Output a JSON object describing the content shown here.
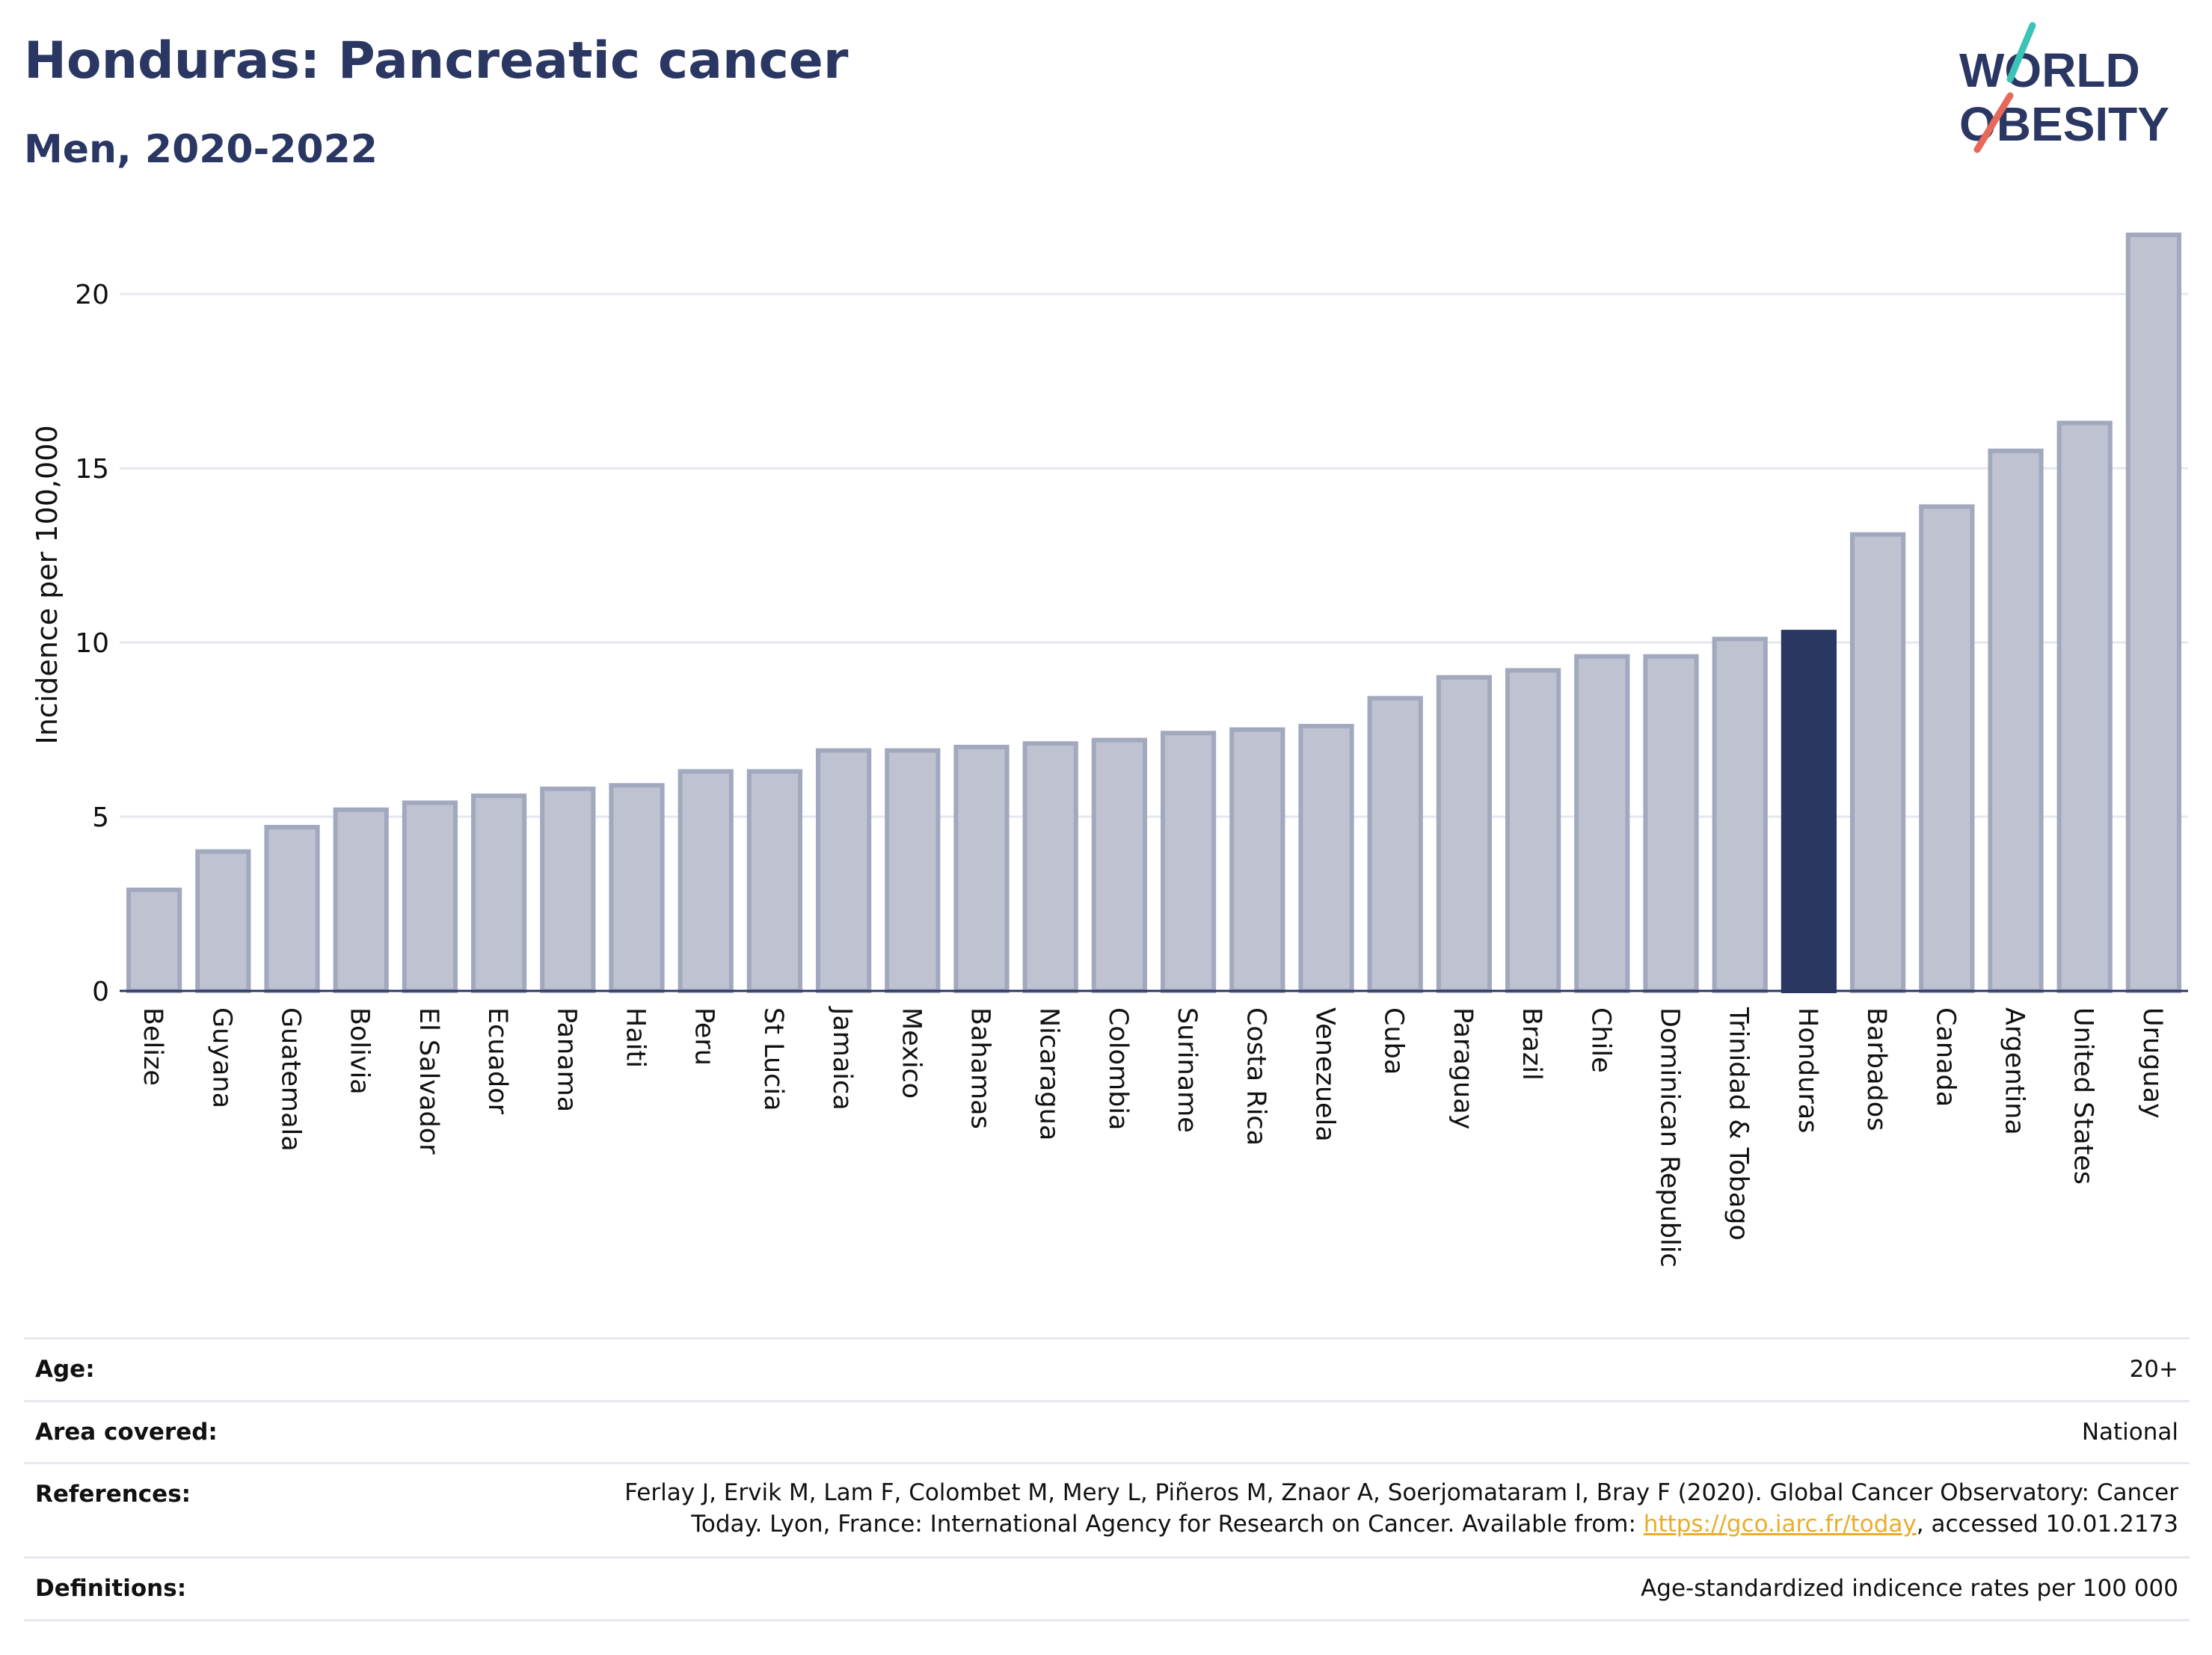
{
  "header": {
    "title": "Honduras: Pancreatic cancer",
    "subtitle": "Men, 2020-2022"
  },
  "logo": {
    "line1": "WORLD",
    "line2": "OBESITY",
    "colors": {
      "text": "#2a3763",
      "slash_top": "#3cc3b7",
      "slash_bottom": "#e8685a"
    }
  },
  "chart_data": {
    "type": "bar",
    "title": "Honduras: Pancreatic cancer",
    "subtitle": "Men, 2020-2022",
    "xlabel": "",
    "ylabel": "Incidence per 100,000",
    "ylim": [
      0,
      22
    ],
    "yticks": [
      0,
      5,
      10,
      15,
      20
    ],
    "grid": true,
    "highlight": "Honduras",
    "colors": {
      "bar": "#bfc3d1",
      "bar_border": "#a2a8be",
      "highlight": "#2a3763",
      "grid": "#e6e8ef"
    },
    "categories": [
      "Belize",
      "Guyana",
      "Guatemala",
      "Bolivia",
      "El Salvador",
      "Ecuador",
      "Panama",
      "Haiti",
      "Peru",
      "St Lucia",
      "Jamaica",
      "Mexico",
      "Bahamas",
      "Nicaragua",
      "Colombia",
      "Suriname",
      "Costa Rica",
      "Venezuela",
      "Cuba",
      "Paraguay",
      "Brazil",
      "Chile",
      "Dominican Republic",
      "Trinidad & Tobago",
      "Honduras",
      "Barbados",
      "Canada",
      "Argentina",
      "United States",
      "Uruguay"
    ],
    "values": [
      2.9,
      4.0,
      4.7,
      5.2,
      5.4,
      5.6,
      5.8,
      5.9,
      6.3,
      6.3,
      6.9,
      6.9,
      7.0,
      7.1,
      7.2,
      7.4,
      7.5,
      7.6,
      8.4,
      9.0,
      9.2,
      9.6,
      9.6,
      10.1,
      10.3,
      13.1,
      13.9,
      15.5,
      16.3,
      21.7
    ]
  },
  "info": {
    "age_label": "Age:",
    "age_value": "20+",
    "area_label": "Area covered:",
    "area_value": "National",
    "references_label": "References:",
    "references_text": "Ferlay J, Ervik M, Lam F, Colombet M, Mery L, Piñeros M, Znaor A, Soerjomataram I, Bray F (2020). Global Cancer Observatory: Cancer Today. Lyon, France: International Agency for Research on Cancer. Available from: ",
    "references_link": "https://gco.iarc.fr/today",
    "references_suffix": ", accessed 10.01.2173",
    "definitions_label": "Definitions:",
    "definitions_value": "Age-standardized indicence rates per 100 000"
  }
}
